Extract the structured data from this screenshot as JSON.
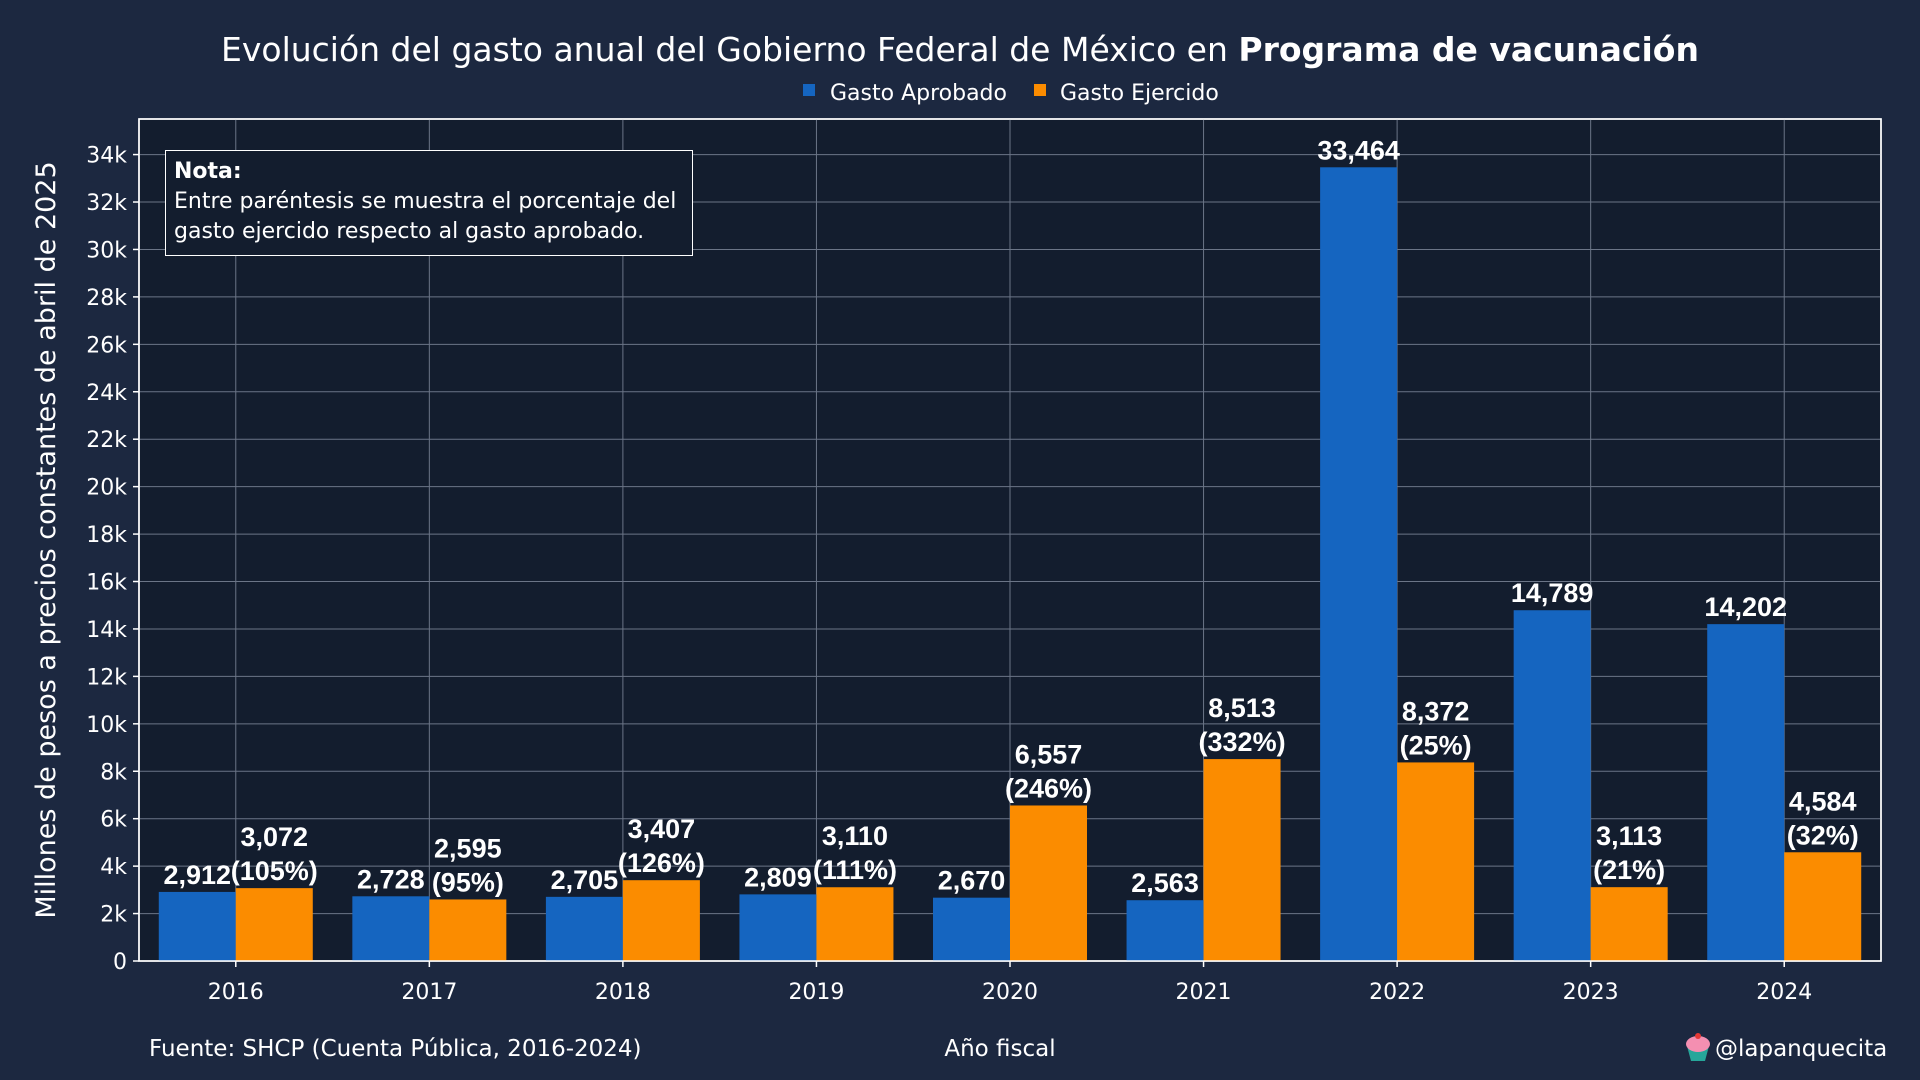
{
  "title": {
    "prefix": "Evolución del gasto anual del Gobierno Federal de México en ",
    "highlight": "Programa de vacunación"
  },
  "legend": [
    {
      "label": "Gasto Aprobado",
      "color": "#1565c0"
    },
    {
      "label": "Gasto Ejercido",
      "color": "#fb8c00"
    }
  ],
  "note": {
    "title": "Nota:",
    "body": "Entre paréntesis se muestra el porcentaje del\ngasto ejercido respecto al gasto aprobado."
  },
  "footer": {
    "source": "Fuente: SHCP (Cuenta Pública, 2016-2024)",
    "credit": "@lapanquecita"
  },
  "colors": {
    "page_background": "#1c2840",
    "plot_background": "#131d2e",
    "aprobado": "#1565c0",
    "ejercido": "#fb8c00",
    "grid": "#6b7587"
  },
  "chart_data": {
    "type": "bar",
    "xlabel": "Año fiscal",
    "ylabel": "Millones de pesos a precios constantes de abril de 2025",
    "categories": [
      "2016",
      "2017",
      "2018",
      "2019",
      "2020",
      "2021",
      "2022",
      "2023",
      "2024"
    ],
    "ylim": [
      0,
      35500
    ],
    "yticks": [
      0,
      2000,
      4000,
      6000,
      8000,
      10000,
      12000,
      14000,
      16000,
      18000,
      20000,
      22000,
      24000,
      26000,
      28000,
      30000,
      32000,
      34000
    ],
    "ytick_labels": [
      "0",
      "2k",
      "4k",
      "6k",
      "8k",
      "10k",
      "12k",
      "14k",
      "16k",
      "18k",
      "20k",
      "22k",
      "24k",
      "26k",
      "28k",
      "30k",
      "32k",
      "34k"
    ],
    "grid": true,
    "legend_position": "top-center",
    "series": [
      {
        "name": "Gasto Aprobado",
        "values": [
          2912,
          2728,
          2705,
          2809,
          2670,
          2563,
          33464,
          14789,
          14202
        ],
        "labels": [
          "2,912",
          "2,728",
          "2,705",
          "2,809",
          "2,670",
          "2,563",
          "33,464",
          "14,789",
          "14,202"
        ]
      },
      {
        "name": "Gasto Ejercido",
        "values": [
          3072,
          2595,
          3407,
          3110,
          6557,
          8513,
          8372,
          3113,
          4584
        ],
        "labels": [
          "3,072",
          "2,595",
          "3,407",
          "3,110",
          "6,557",
          "8,513",
          "8,372",
          "3,113",
          "4,584"
        ],
        "pct_labels": [
          "(105%)",
          "(95%)",
          "(126%)",
          "(111%)",
          "(246%)",
          "(332%)",
          "(25%)",
          "(21%)",
          "(32%)"
        ]
      }
    ]
  }
}
